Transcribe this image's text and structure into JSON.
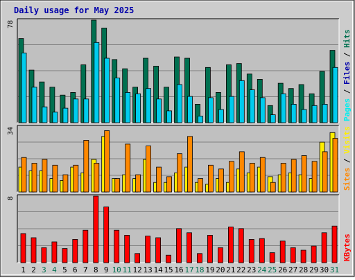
{
  "colors": {
    "frame_bg": "#cccccc",
    "panel_bg": "#c0c0c0",
    "title": "#0000aa",
    "grid": "#808080",
    "hits": "#007050",
    "files": "#00ccee",
    "pages": "#00eeee",
    "visits": "#ffee00",
    "sites": "#ff8800",
    "kbytes": "#ff0000",
    "day_weekday": "#000000",
    "day_weekend": "#007050"
  },
  "chart_data": {
    "type": "bar",
    "title": "Daily usage for May 2025",
    "categories": [
      "1",
      "2",
      "3",
      "4",
      "5",
      "6",
      "7",
      "8",
      "9",
      "10",
      "11",
      "12",
      "13",
      "14",
      "15",
      "16",
      "17",
      "18",
      "19",
      "20",
      "21",
      "22",
      "23",
      "24",
      "25",
      "26",
      "27",
      "28",
      "29",
      "30",
      "31"
    ],
    "weekend_days": [
      "3",
      "4",
      "10",
      "11",
      "17",
      "18",
      "24",
      "25",
      "31"
    ],
    "panels": [
      {
        "id": "hits-files",
        "max_label": "78",
        "ymax": 78,
        "legend": [
          {
            "text": "Pages",
            "color": "#00eeee"
          },
          {
            "text": " / ",
            "color": "#000000"
          },
          {
            "text": "Files",
            "color": "#0000aa"
          },
          {
            "text": " / ",
            "color": "#000000"
          },
          {
            "text": "Hits",
            "color": "#007050"
          }
        ],
        "series": [
          {
            "name": "Hits",
            "color": "#007050",
            "values": [
              64,
              40,
              31,
              27,
              21,
              23,
              44,
              78,
              72,
              48,
              41,
              27,
              49,
              43,
              27,
              50,
              49,
              14,
              42,
              23,
              44,
              45,
              37,
              33,
              13,
              30,
              26,
              29,
              22,
              39,
              55
            ]
          },
          {
            "name": "Files",
            "color": "#00ccee",
            "values": [
              53,
              27,
              12,
              8,
              11,
              18,
              18,
              61,
              49,
              34,
              23,
              22,
              26,
              18,
              9,
              29,
              20,
              5,
              19,
              10,
              20,
              32,
              25,
              19,
              6,
              22,
              14,
              10,
              13,
              14,
              42
            ]
          }
        ]
      },
      {
        "id": "visits-sites",
        "max_label": "34",
        "ymax": 34,
        "legend": [
          {
            "text": "Sites",
            "color": "#ff8800"
          },
          {
            "text": " / ",
            "color": "#000000"
          },
          {
            "text": "Visits",
            "color": "#ffee00"
          }
        ],
        "series": [
          {
            "name": "Visits",
            "color": "#ffee00",
            "values": [
              13,
              11,
              11,
              7,
              6,
              13,
              10,
              17,
              29,
              7,
              9,
              7,
              17,
              5,
              5,
              10,
              13,
              5,
              4,
              7,
              5,
              12,
              10,
              13,
              8,
              9,
              10,
              9,
              7,
              26,
              31
            ]
          },
          {
            "name": "Sites",
            "color": "#ff8800",
            "values": [
              18,
              15,
              17,
              14,
              9,
              14,
              27,
              15,
              32,
              7,
              25,
              9,
              24,
              13,
              8,
              20,
              29,
              7,
              14,
              12,
              16,
              21,
              15,
              18,
              5,
              15,
              17,
              19,
              16,
              21,
              28
            ]
          }
        ]
      },
      {
        "id": "kbytes",
        "max_label": "8",
        "ymax": 8,
        "legend": [
          {
            "text": "KBytes",
            "color": "#ff0000"
          }
        ],
        "series": [
          {
            "name": "KBytes",
            "color": "#ff0000",
            "values": [
              3.5,
              3.0,
              1.8,
              2.5,
              1.7,
              2.8,
              3.9,
              8.0,
              6.7,
              3.9,
              3.3,
              1.1,
              3.2,
              3.0,
              0.9,
              4.1,
              3.6,
              1.1,
              3.3,
              1.8,
              4.3,
              4.1,
              2.8,
              2.9,
              1.2,
              2.6,
              1.8,
              1.5,
              2.0,
              3.6,
              4.4
            ]
          }
        ]
      }
    ]
  }
}
